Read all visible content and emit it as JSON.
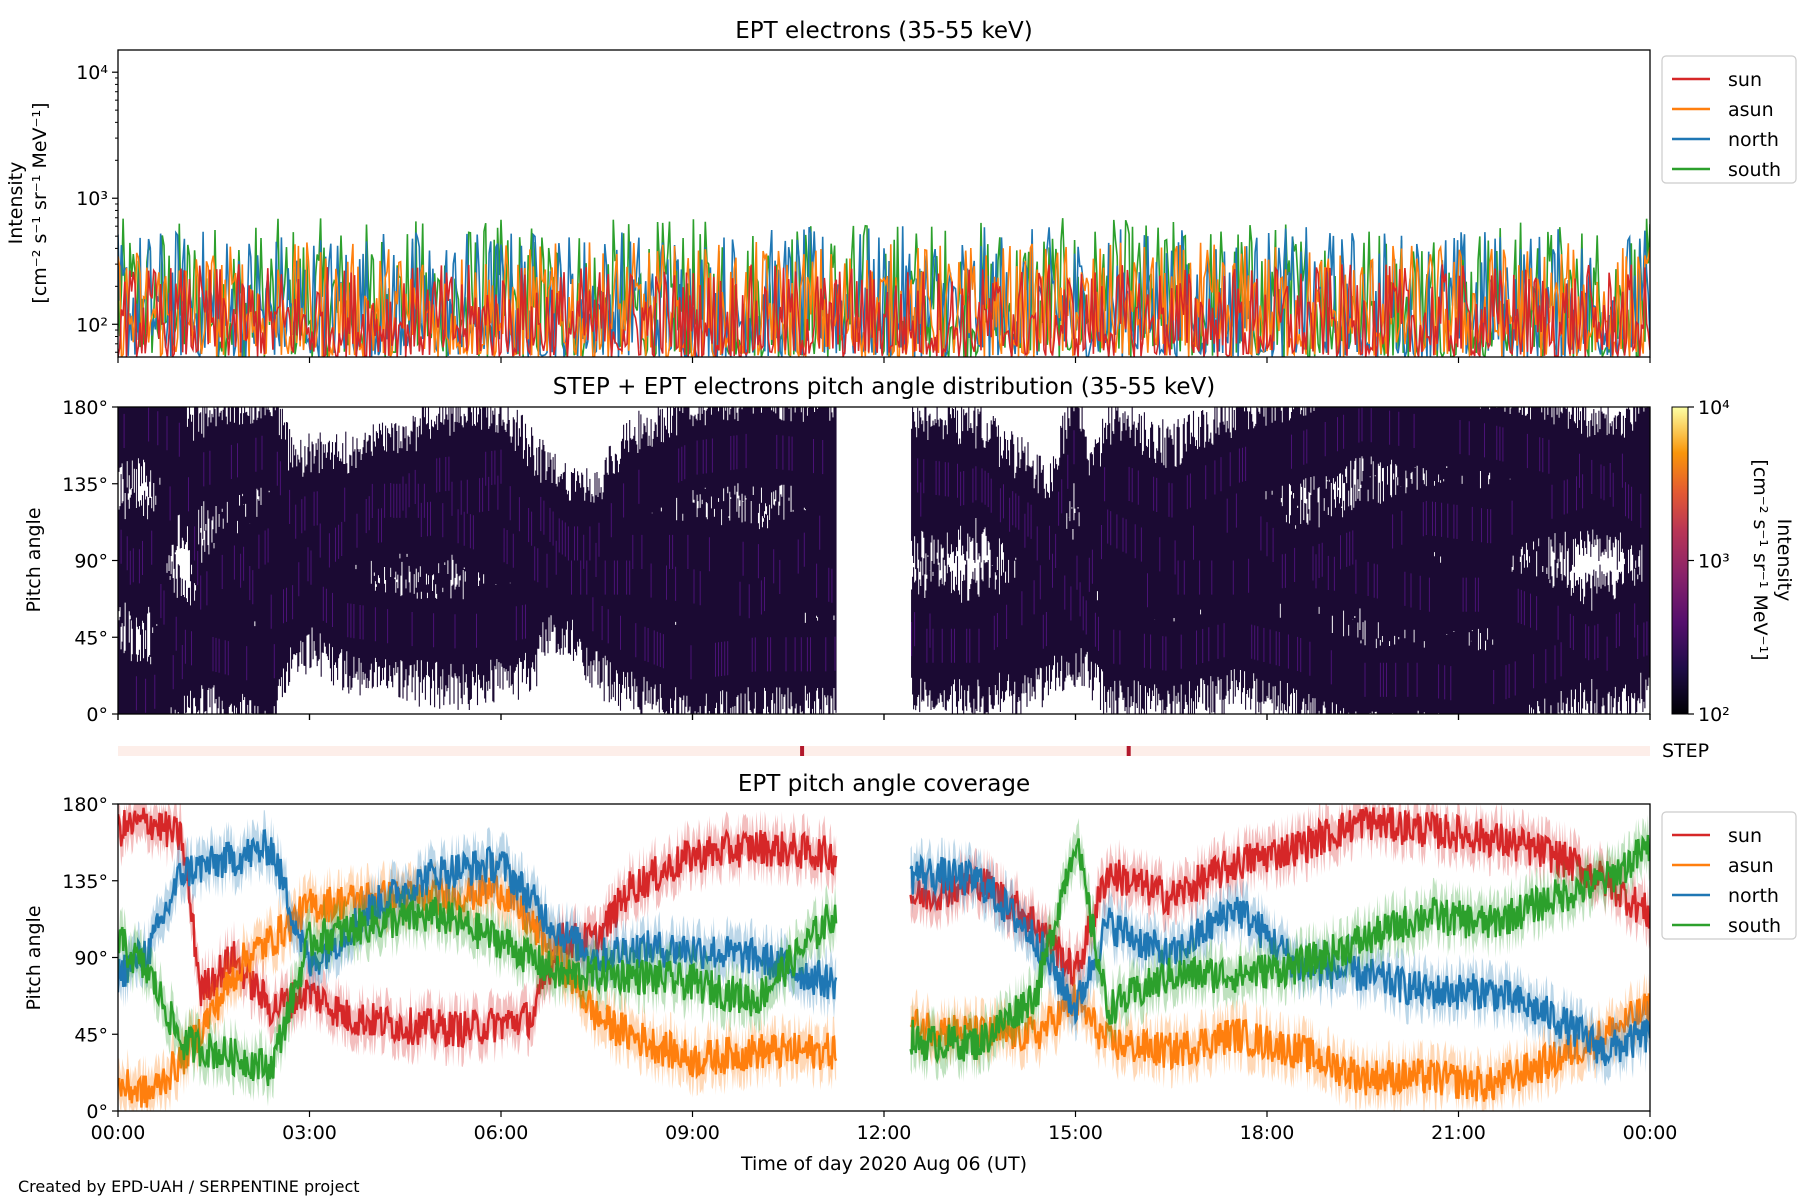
{
  "footer": {
    "credit": "Created by EPD-UAH / SERPENTINE project"
  },
  "colors": {
    "sun": "#d62728",
    "asun": "#ff7f0e",
    "north": "#1f77b4",
    "south": "#2ca02c",
    "step_bar_bg": "#fdeee9",
    "step_marker": "#b2182b"
  },
  "chart_data": [
    {
      "type": "line",
      "title": "EPT electrons (35-55 keV)",
      "ylabel": "Intensity",
      "ylabel_unit": "[cm⁻² s⁻¹ sr⁻¹ MeV⁻¹]",
      "yscale": "log",
      "ylim": [
        55,
        15000
      ],
      "yticks": [
        "10²",
        "10³",
        "10⁴"
      ],
      "x_range": [
        "2020-08-06 00:00",
        "2020-08-07 00:00"
      ],
      "legend": {
        "placement": "outside-right-top",
        "entries": [
          "sun",
          "asun",
          "north",
          "south"
        ]
      },
      "series": [
        {
          "name": "sun",
          "typical_range": [
            55,
            300
          ],
          "median": 110
        },
        {
          "name": "asun",
          "typical_range": [
            55,
            450
          ],
          "median": 160
        },
        {
          "name": "north",
          "typical_range": [
            55,
            600
          ],
          "median": 140
        },
        {
          "name": "south",
          "typical_range": [
            55,
            700
          ],
          "median": 130
        }
      ]
    },
    {
      "type": "heatmap",
      "title": "STEP + EPT electrons pitch angle distribution (35-55 keV)",
      "ylabel": "Pitch angle",
      "ylim": [
        0,
        180
      ],
      "yticks": [
        "0°",
        "45°",
        "90°",
        "135°",
        "180°"
      ],
      "data_gap": [
        "11:15",
        "12:25"
      ],
      "colorbar": {
        "label": "Intensity",
        "unit": "[cm⁻² s⁻¹ sr⁻¹ MeV⁻¹]",
        "scale": "log",
        "range": [
          100,
          10000
        ],
        "ticks": [
          "10²",
          "10³",
          "10⁴"
        ],
        "colormap": "inferno"
      }
    },
    {
      "type": "timeline",
      "label": "STEP",
      "markers": [
        "10:43",
        "15:50"
      ]
    },
    {
      "type": "line",
      "title": "EPT pitch angle coverage",
      "ylabel": "Pitch angle",
      "xlabel": "Time of day 2020 Aug 06 (UT)",
      "ylim": [
        0,
        180
      ],
      "yticks": [
        "0°",
        "45°",
        "90°",
        "135°",
        "180°"
      ],
      "xticks": [
        "00:00",
        "03:00",
        "06:00",
        "09:00",
        "12:00",
        "15:00",
        "18:00",
        "21:00",
        "00:00"
      ],
      "data_gap": [
        "11:15",
        "12:25"
      ],
      "legend": {
        "placement": "outside-right-top",
        "entries": [
          "sun",
          "asun",
          "north",
          "south"
        ]
      },
      "series": [
        {
          "name": "sun",
          "time_h": [
            0,
            0.5,
            1,
            1.3,
            1.8,
            2.4,
            3,
            3.6,
            4.5,
            5.5,
            6.5,
            6.9,
            7.5,
            8,
            9,
            10,
            11.2,
            12.5,
            13.5,
            14.4,
            15,
            15.5,
            16.5,
            17.5,
            18.5,
            19.5,
            20.5,
            21.5,
            22.5,
            23.3,
            24
          ],
          "pitch_deg": [
            165,
            170,
            160,
            70,
            90,
            60,
            70,
            55,
            50,
            48,
            55,
            100,
            100,
            130,
            150,
            155,
            150,
            125,
            135,
            110,
            80,
            140,
            125,
            145,
            155,
            170,
            165,
            160,
            150,
            135,
            115
          ]
        },
        {
          "name": "asun",
          "time_h": [
            0,
            0.5,
            1,
            2,
            2.4,
            3,
            4,
            5,
            6,
            6.9,
            7.5,
            8,
            9,
            10,
            11.2,
            12.5,
            13.5,
            14.4,
            15,
            15.5,
            16.5,
            17.5,
            18.5,
            19.5,
            20.5,
            21.5,
            22.5,
            23.3,
            24
          ],
          "pitch_deg": [
            15,
            10,
            30,
            90,
            100,
            120,
            125,
            125,
            130,
            90,
            55,
            45,
            30,
            35,
            35,
            50,
            45,
            45,
            65,
            40,
            35,
            45,
            35,
            20,
            20,
            15,
            30,
            45,
            60
          ]
        },
        {
          "name": "north",
          "time_h": [
            0,
            0.5,
            1,
            2,
            2.4,
            3,
            4,
            5,
            6,
            6.9,
            7.5,
            8,
            9,
            10,
            11.2,
            12.5,
            13.5,
            14.4,
            15,
            15.5,
            16.5,
            17.5,
            18.5,
            19.5,
            20.5,
            21.5,
            22.5,
            23.3,
            24
          ],
          "pitch_deg": [
            80,
            95,
            140,
            150,
            155,
            85,
            120,
            140,
            145,
            105,
            90,
            95,
            95,
            90,
            75,
            140,
            135,
            100,
            60,
            110,
            90,
            120,
            85,
            80,
            70,
            70,
            55,
            35,
            45
          ]
        },
        {
          "name": "south",
          "time_h": [
            0,
            0.5,
            1,
            2,
            2.4,
            3,
            4,
            5,
            6,
            6.9,
            7.5,
            8,
            9,
            10,
            11.2,
            12.5,
            13.5,
            14.4,
            15,
            15.5,
            16.5,
            17.5,
            18.5,
            19.5,
            20.5,
            21.5,
            22.5,
            23.3,
            24
          ],
          "pitch_deg": [
            100,
            80,
            40,
            30,
            25,
            100,
            110,
            115,
            100,
            80,
            80,
            80,
            75,
            65,
            115,
            40,
            40,
            70,
            160,
            60,
            80,
            80,
            85,
            100,
            115,
            110,
            125,
            135,
            155
          ]
        }
      ]
    }
  ]
}
